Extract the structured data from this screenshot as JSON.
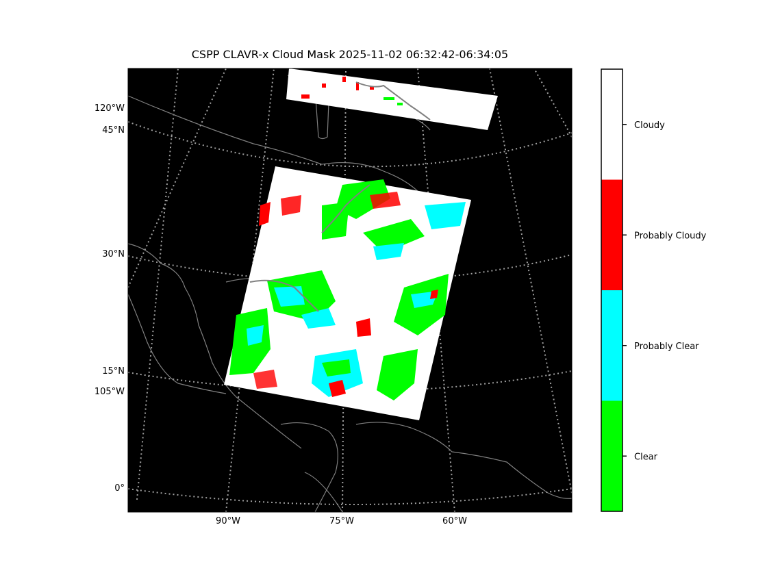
{
  "title": "CSPP CLAVR-x Cloud Mask 2025-11-02 06:32:42-06:34:05",
  "map": {
    "background": "#000000",
    "coastline_color": "#808080",
    "graticule_color": "#a0a0a0",
    "graticule_style": "dotted",
    "latitude_labels": [
      "45°N",
      "30°N",
      "15°N",
      "0°"
    ],
    "longitude_labels_left": [
      "120°W",
      "105°W"
    ],
    "longitude_labels_bottom": [
      "90°W",
      "75°W",
      "60°W"
    ]
  },
  "legend": {
    "categories": [
      {
        "label": "Cloudy",
        "color": "#ffffff"
      },
      {
        "label": "Probably Cloudy",
        "color": "#ff0000"
      },
      {
        "label": "Probably Clear",
        "color": "#00ffff"
      },
      {
        "label": "Clear",
        "color": "#00ff00"
      }
    ]
  }
}
